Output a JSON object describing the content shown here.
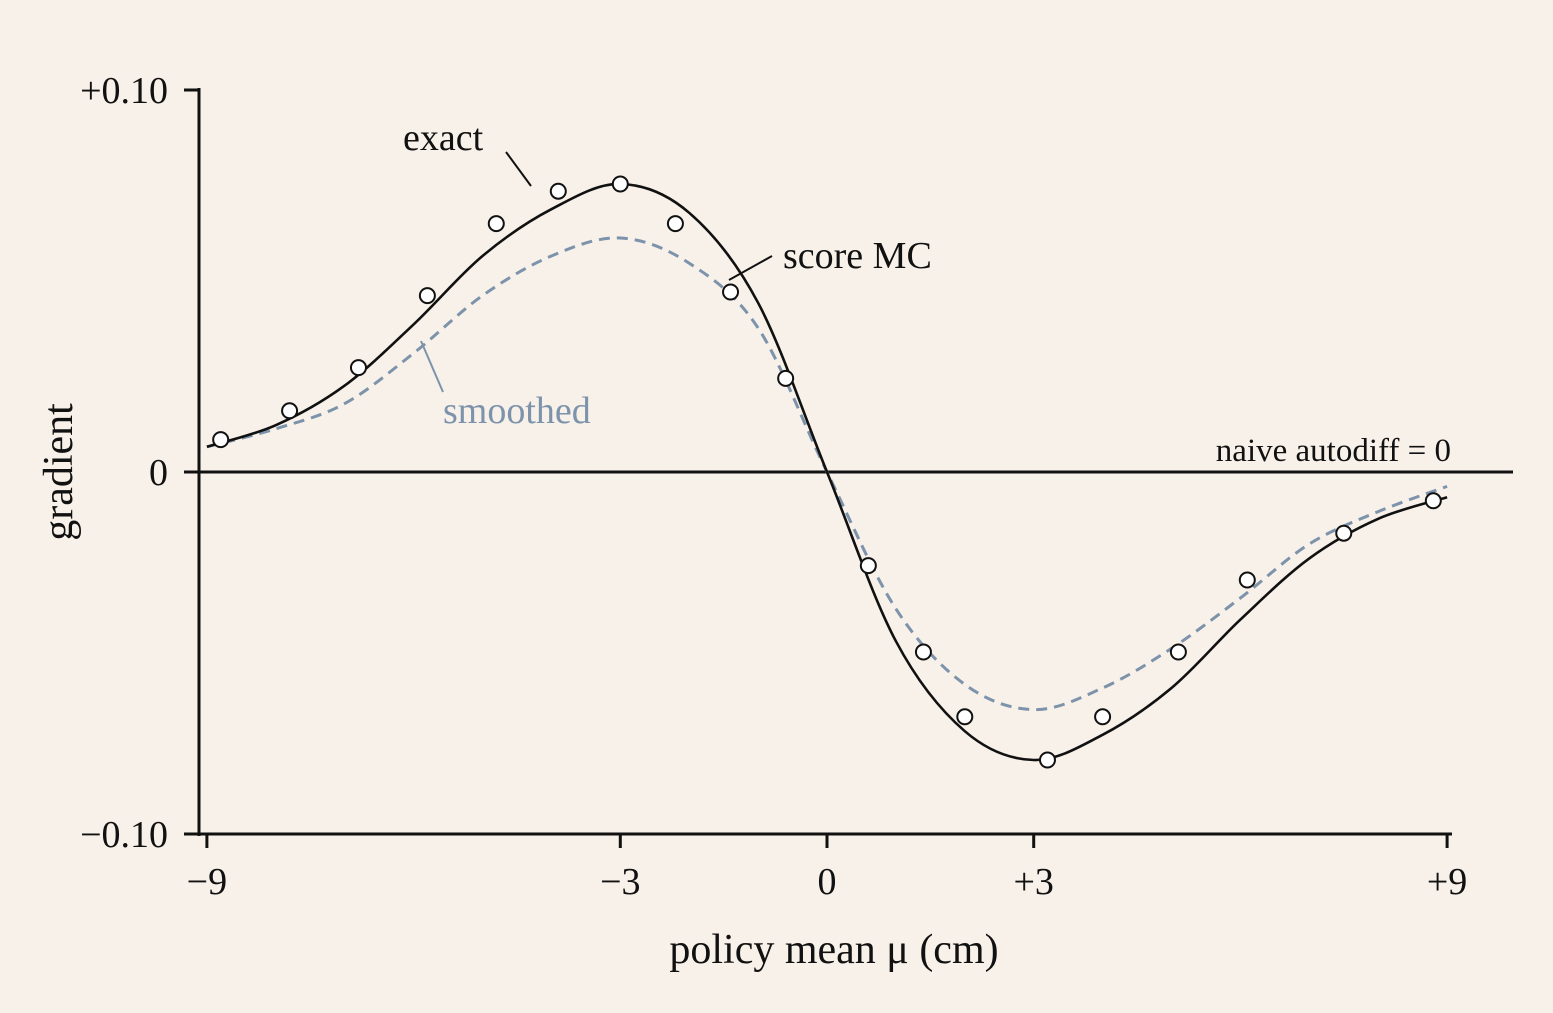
{
  "chart_data": {
    "type": "line",
    "title": "",
    "xlabel": "policy mean μ (cm)",
    "ylabel": "gradient",
    "xlim": [
      -9,
      9
    ],
    "ylim": [
      -0.1,
      0.1
    ],
    "x_ticks": [
      {
        "value": -9,
        "label": "−9"
      },
      {
        "value": -3,
        "label": "−3"
      },
      {
        "value": 0,
        "label": "0"
      },
      {
        "value": 3,
        "label": "+3"
      },
      {
        "value": 9,
        "label": "+9"
      }
    ],
    "y_ticks": [
      {
        "value": 0.1,
        "label": "+0.10"
      },
      {
        "value": 0,
        "label": "0"
      },
      {
        "value": -0.1,
        "label": "−0.10"
      }
    ],
    "grid": false,
    "legend": "none (direct labels)",
    "series": [
      {
        "name": "exact",
        "style": "solid",
        "color": "#111111",
        "x": [
          -9.0,
          -8.0,
          -7.0,
          -6.0,
          -5.0,
          -4.0,
          -3.0,
          -2.0,
          -1.0,
          0.0,
          1.0,
          2.0,
          3.0,
          4.0,
          5.0,
          6.0,
          7.0,
          8.0,
          9.0
        ],
        "y": [
          0.007,
          0.013,
          0.024,
          0.041,
          0.06,
          0.073,
          0.08,
          0.072,
          0.047,
          0.0,
          -0.047,
          -0.072,
          -0.08,
          -0.073,
          -0.06,
          -0.041,
          -0.024,
          -0.013,
          -0.007
        ]
      },
      {
        "name": "smoothed",
        "style": "dashed",
        "color": "#7d93ab",
        "x": [
          -9.0,
          -8.0,
          -7.0,
          -6.0,
          -5.0,
          -4.0,
          -3.0,
          -2.0,
          -1.0,
          0.0,
          1.0,
          2.0,
          3.0,
          4.0,
          5.0,
          6.0,
          7.0,
          8.0,
          9.0
        ],
        "y": [
          0.007,
          0.012,
          0.019,
          0.033,
          0.049,
          0.06,
          0.065,
          0.058,
          0.04,
          0.0,
          -0.038,
          -0.059,
          -0.066,
          -0.06,
          -0.049,
          -0.035,
          -0.02,
          -0.011,
          -0.004
        ]
      },
      {
        "name": "score MC",
        "style": "markers",
        "color": "#111111",
        "x": [
          -8.8,
          -7.8,
          -6.8,
          -5.8,
          -4.8,
          -3.9,
          -3.0,
          -2.2,
          -1.4,
          -0.6,
          0.6,
          1.4,
          2.0,
          3.2,
          4.0,
          5.1,
          6.1,
          7.5,
          8.8
        ],
        "y": [
          0.009,
          0.017,
          0.029,
          0.049,
          0.069,
          0.078,
          0.08,
          0.069,
          0.05,
          0.026,
          -0.026,
          -0.05,
          -0.068,
          -0.08,
          -0.068,
          -0.05,
          -0.03,
          -0.017,
          -0.008
        ]
      },
      {
        "name": "naive autodiff = 0",
        "style": "solid",
        "color": "#111111",
        "x": [
          -9,
          9
        ],
        "y": [
          0,
          0
        ]
      }
    ],
    "annotations": [
      {
        "text": "exact"
      },
      {
        "text": "score MC"
      },
      {
        "text": "smoothed"
      },
      {
        "text": "naive autodiff = 0"
      }
    ]
  }
}
